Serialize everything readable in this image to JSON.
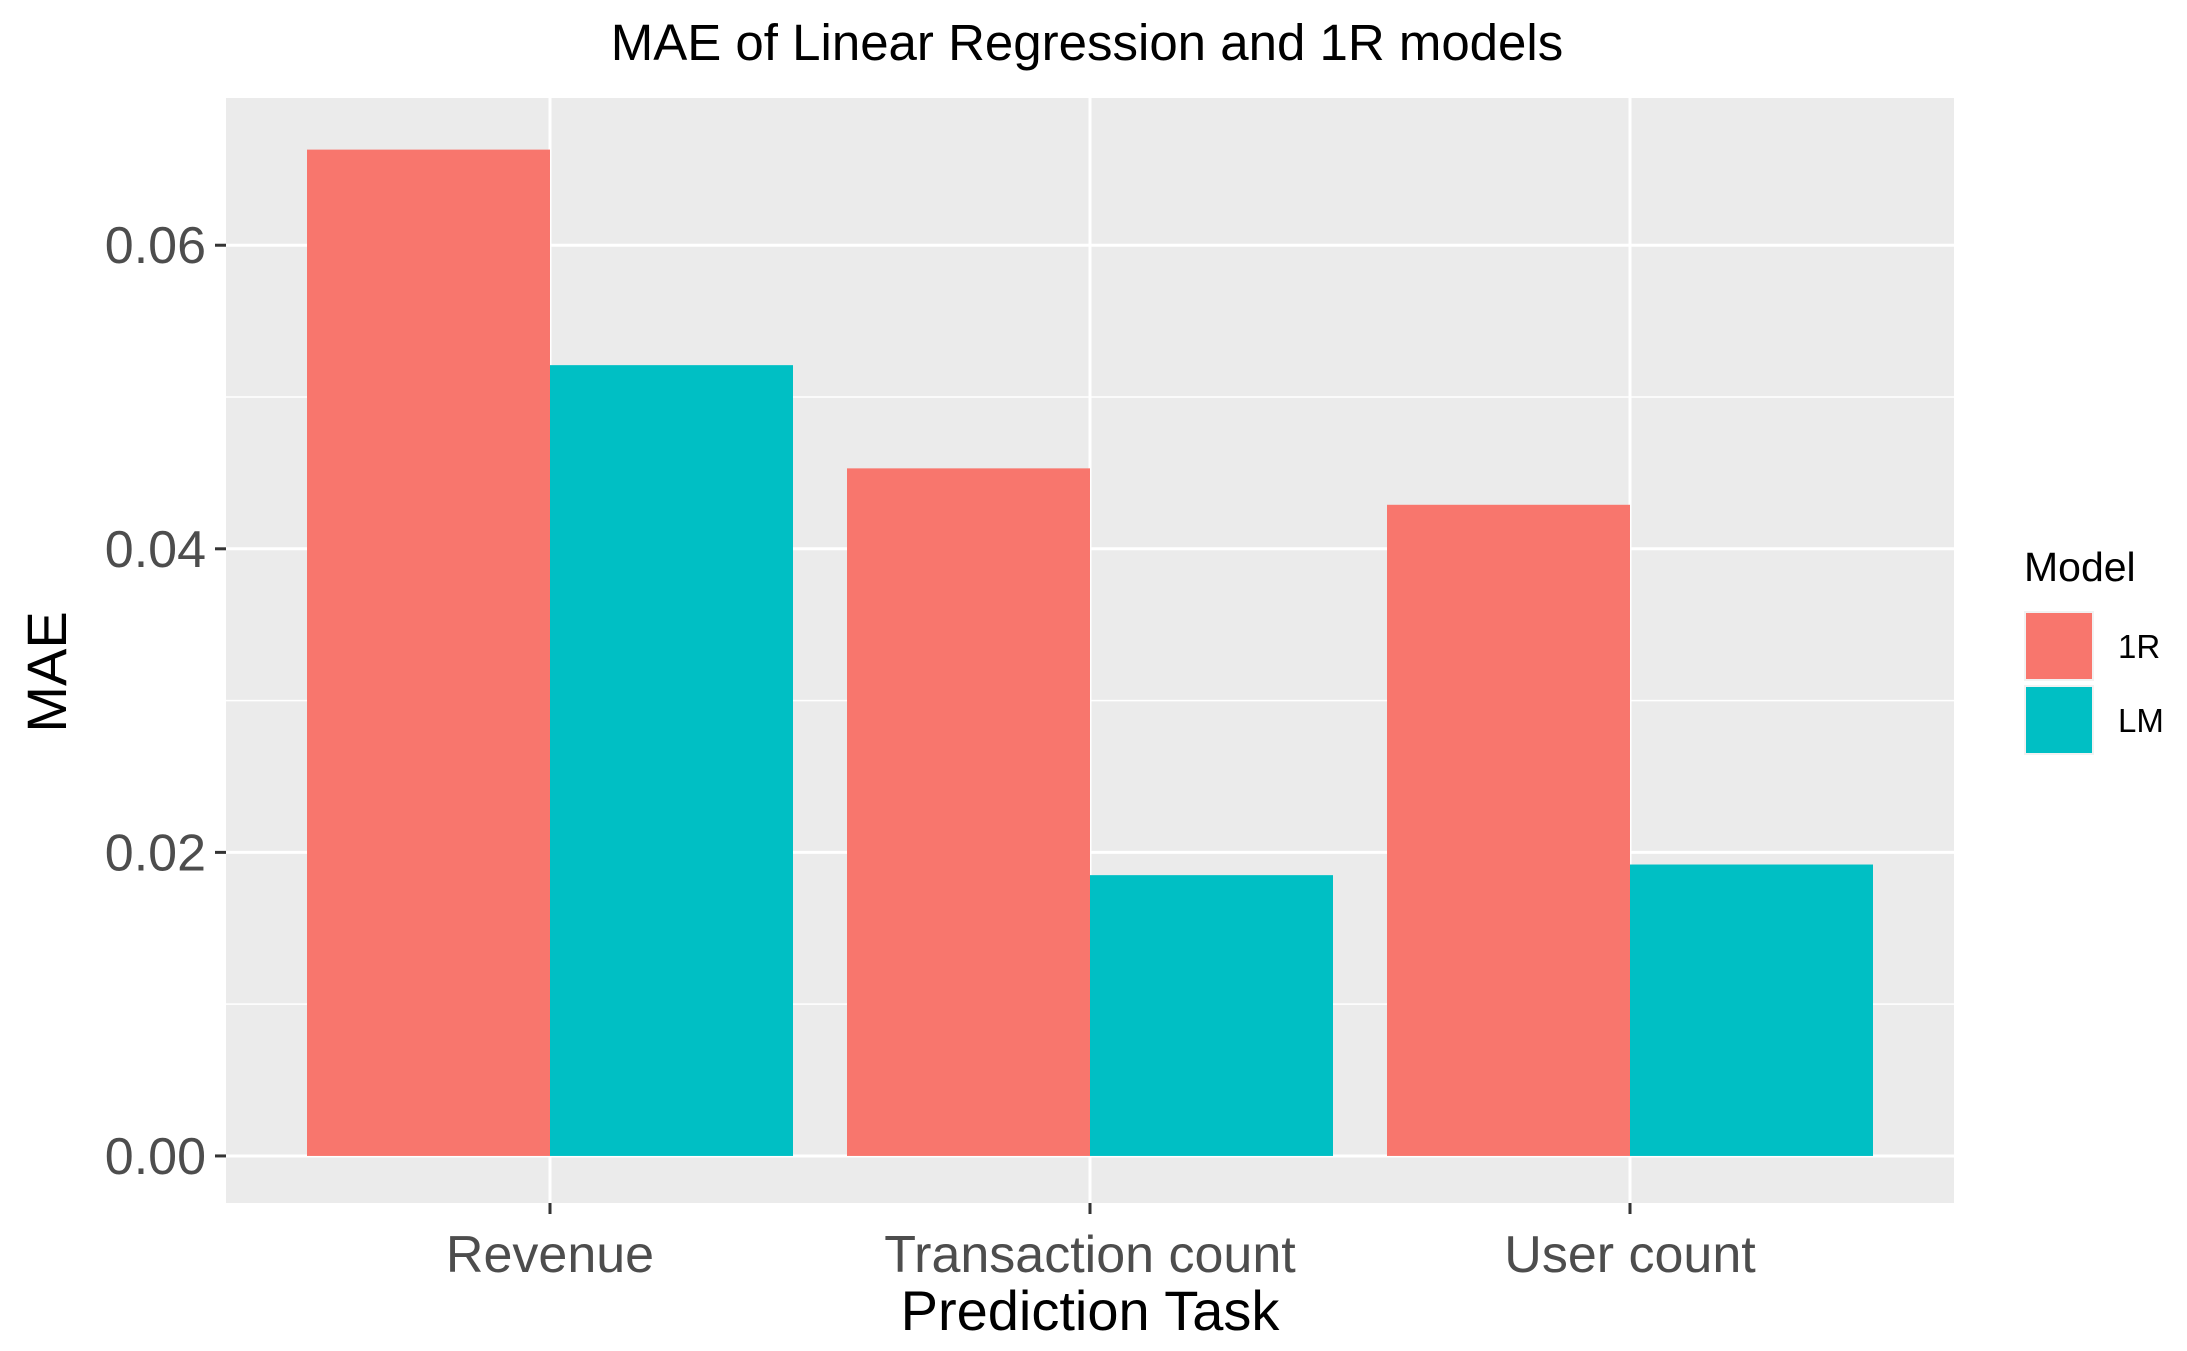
{
  "chart_data": {
    "type": "bar",
    "title": "MAE of Linear Regression and 1R models",
    "xlabel": "Prediction Task",
    "ylabel": "MAE",
    "categories": [
      "Revenue",
      "Transaction count",
      "User count"
    ],
    "series": [
      {
        "name": "1R",
        "color": "#F8766D",
        "values": [
          0.0663,
          0.0453,
          0.0429
        ]
      },
      {
        "name": "LM",
        "color": "#00BFC4",
        "values": [
          0.0521,
          0.0185,
          0.0192
        ]
      }
    ],
    "ylim": [
      -0.0031,
      0.0697
    ],
    "yticks": [
      0.0,
      0.02,
      0.04,
      0.06
    ],
    "ytick_labels": [
      "0.00",
      "0.02",
      "0.04",
      "0.06"
    ],
    "legend": {
      "title": "Model",
      "placement": "right"
    },
    "grid": true,
    "panel_background": "#EBEBEB",
    "grid_color": "#FFFFFF"
  }
}
